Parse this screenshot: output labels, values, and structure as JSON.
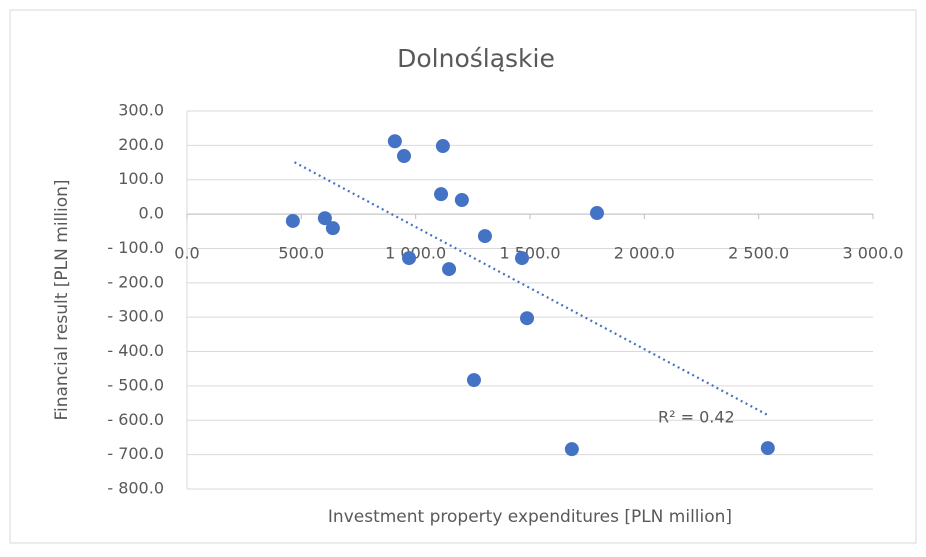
{
  "chart_data": {
    "type": "scatter",
    "title": "Dolnośląskie",
    "x_label": "Investment property expenditures [PLN million]",
    "y_label": "Financial result [PLN million]",
    "series": [
      {
        "name": "Dolnośląskie",
        "color": "#4472c4",
        "x": [
          463,
          603,
          638,
          909,
          949,
          971,
          1119,
          1111,
          1146,
          1202,
          1303,
          1255,
          1465,
          1487,
          1793,
          1683,
          2540
        ],
        "values": [
          -20,
          -12,
          -41,
          212,
          169,
          -128,
          198,
          58,
          -160,
          41,
          -64,
          -483,
          -128,
          -303,
          3,
          -684,
          -681
        ]
      }
    ],
    "trendline": {
      "x": [
        470,
        2540
      ],
      "values": [
        151,
        -585
      ],
      "color": "#4472c4"
    },
    "annotation": "R² = 0.42",
    "xlim": [
      0,
      3000
    ],
    "ylim": [
      -800,
      300
    ],
    "xticks": [
      {
        "value": 0,
        "label": "0.0"
      },
      {
        "value": 500,
        "label": "500.0"
      },
      {
        "value": 1000,
        "label": "1 000.0"
      },
      {
        "value": 1500,
        "label": "1 500.0"
      },
      {
        "value": 2000,
        "label": "2 000.0"
      },
      {
        "value": 2500,
        "label": "2 500.0"
      },
      {
        "value": 3000,
        "label": "3 000.0"
      }
    ],
    "yticks": [
      {
        "value": 300,
        "label": "300.0"
      },
      {
        "value": 200,
        "label": "200.0"
      },
      {
        "value": 100,
        "label": "100.0"
      },
      {
        "value": 0,
        "label": "0.0"
      },
      {
        "value": -100,
        "label": "- 100.0"
      },
      {
        "value": -200,
        "label": "- 200.0"
      },
      {
        "value": -300,
        "label": "- 300.0"
      },
      {
        "value": -400,
        "label": "- 400.0"
      },
      {
        "value": -500,
        "label": "- 500.0"
      },
      {
        "value": -600,
        "label": "- 600.0"
      },
      {
        "value": -700,
        "label": "- 700.0"
      },
      {
        "value": -800,
        "label": "- 800.0"
      }
    ],
    "grid": true
  }
}
